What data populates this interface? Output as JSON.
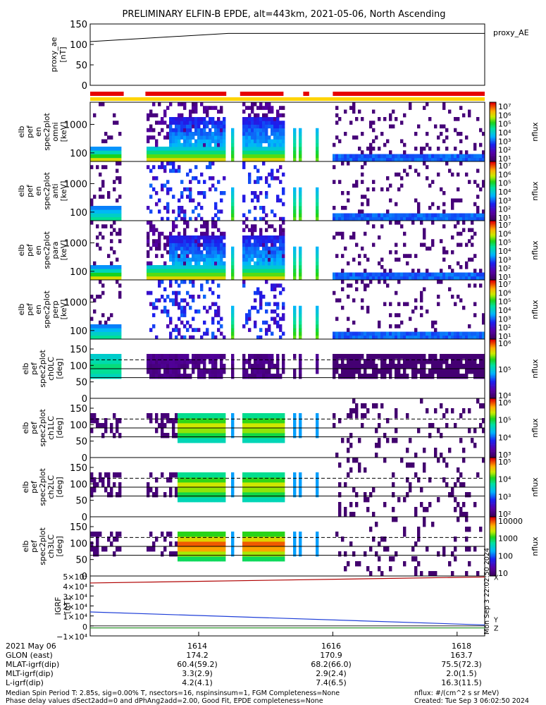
{
  "title": "PRELIMINARY ELFIN-B EPDE, alt=443km, 2021-05-06, North Ascending",
  "colors": {
    "red_bar": "#e60000",
    "yellow_bar": "#ffd400",
    "proxy_line": "#000000",
    "igrf_x": "#b00000",
    "igrf_y": "#1f3fd8",
    "igrf_z": "#1a8c1a"
  },
  "panels": [
    {
      "ylabel": [
        "proxy_ae",
        "[nT]"
      ],
      "legend": "proxy_AE"
    },
    {
      "ylabel": [
        "elb",
        "pef",
        "en",
        "spec2plot",
        "omni",
        "[keV]"
      ],
      "cbar_label": "nflux"
    },
    {
      "ylabel": [
        "elb",
        "pef",
        "en",
        "spec2plot",
        "anti",
        "[keV]"
      ],
      "cbar_label": "nflux"
    },
    {
      "ylabel": [
        "elb",
        "pef",
        "en",
        "spec2plot",
        "para",
        "[keV]"
      ],
      "cbar_label": "nflux"
    },
    {
      "ylabel": [
        "elb",
        "pef",
        "en",
        "spec2plot",
        "perp",
        "[keV]"
      ],
      "cbar_label": "nflux"
    },
    {
      "ylabel": [
        "elb",
        "pef",
        "spec2plot",
        "ch0LC",
        "[deg]"
      ],
      "cbar_label": "nflux"
    },
    {
      "ylabel": [
        "elb",
        "pef",
        "spec2plot",
        "ch1LC",
        "[deg]"
      ],
      "cbar_label": "nflux"
    },
    {
      "ylabel": [
        "elb",
        "pef",
        "spec2plot",
        "ch2LC",
        "[deg]"
      ],
      "cbar_label": "nflux"
    },
    {
      "ylabel": [
        "elb",
        "pef",
        "spec2plot",
        "ch3LC",
        "[deg]"
      ],
      "cbar_label": "nflux"
    },
    {
      "ylabel": [
        "IGRF",
        "[nT]"
      ],
      "legend": [
        "X",
        "Y",
        "Z"
      ]
    }
  ],
  "ticks": {
    "proxy": [
      "150",
      "100",
      "50",
      "0"
    ],
    "energy": [
      "1000",
      "100"
    ],
    "angle": [
      "150",
      "100",
      "50",
      "0"
    ],
    "igrf": [
      "5×10⁴",
      "4×10⁴",
      "3×10⁴",
      "2×10⁴",
      "1×10⁴",
      "0",
      "−1×10⁴"
    ]
  },
  "cbar_ticks": {
    "p1": [
      "10⁷",
      "10⁶",
      "10⁵",
      "10⁴",
      "10³",
      "10²",
      "10¹"
    ],
    "p2": [
      "10⁷",
      "10⁶",
      "10⁵",
      "10⁴",
      "10³",
      "10²",
      "10¹"
    ],
    "p3": [
      "10⁷",
      "10⁶",
      "10⁵",
      "10⁴",
      "10³",
      "10²",
      "10¹"
    ],
    "p4": [
      "10⁷",
      "10⁶",
      "10⁵",
      "10⁴",
      "10³",
      "10²",
      "10¹"
    ],
    "p5": [
      "10⁶",
      "10⁵",
      "10⁴"
    ],
    "p6": [
      "10⁶",
      "10⁵",
      "10⁴",
      "10³"
    ],
    "p7": [
      "10⁵",
      "10⁴",
      "10³",
      "10²"
    ],
    "p8": [
      "10000",
      "1000",
      "100",
      "10"
    ]
  },
  "side_text": "Mon Sep  3 22:02:50 2024",
  "footer": {
    "rows": [
      {
        "label": "2021 May 06",
        "values": [
          "1614",
          "1616",
          "1618"
        ]
      },
      {
        "label": "GLON (east)",
        "values": [
          "174.2",
          "170.9",
          "163.7"
        ]
      },
      {
        "label": "MLAT-igrf(dip)",
        "values": [
          "60.4(59.2)",
          "68.2(66.0)",
          "75.5(72.3)"
        ]
      },
      {
        "label": "MLT-igrf(dip)",
        "values": [
          "3.3(2.9)",
          "2.9(2.4)",
          "2.0(1.5)"
        ]
      },
      {
        "label": "L-igrf(dip)",
        "values": [
          "4.2(4.1)",
          "7.4(6.5)",
          "16.3(11.5)"
        ]
      }
    ],
    "note1": "Median Spin Period T: 2.85s, sig=0.00% T, nsectors=16, nspinsinsum=1, FGM Completeness=None",
    "note2": "Phase delay values dSect2add=0 and dPhAng2add=2.00, Good Fit, EPDE completeness=None",
    "units": "nflux: #/(cm^2 s sr MeV)",
    "created": "Created: Tue Sep  3 06:02:50 2024"
  },
  "chart_data": {
    "type": "heatmap",
    "x_unit": "UT hhmm",
    "x_ticks": [
      "1614",
      "1616",
      "1618"
    ],
    "proxy_ae": {
      "ylim": [
        0,
        150
      ],
      "start": 107,
      "end": 127
    },
    "energy_range_keV": [
      50,
      6000
    ],
    "pitch_angle_range_deg": [
      0,
      180
    ],
    "igrf_range_nT": [
      -10000,
      50000
    ],
    "igrf_series": [
      {
        "name": "X",
        "start": 43000,
        "end": 49000
      },
      {
        "name": "Y",
        "start": 14000,
        "end": 1000
      },
      {
        "name": "Z",
        "start": -2000,
        "end": -2000
      }
    ],
    "colorbar": "log nflux, rainbow (purple=low, red=high)"
  }
}
